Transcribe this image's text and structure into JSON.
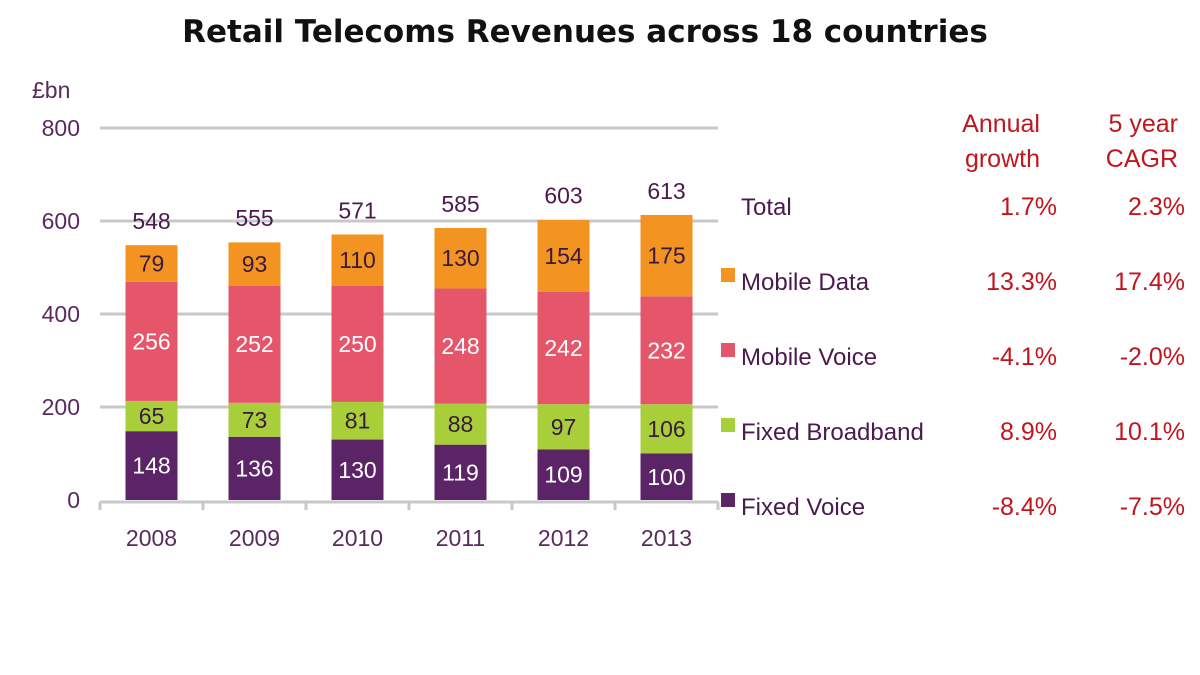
{
  "chart_data": {
    "type": "bar",
    "stacked": true,
    "title": "Retail Telecoms Revenues across 18 countries",
    "ylabel": "£bn",
    "ylim": [
      0,
      800
    ],
    "yticks": [
      "0",
      "200",
      "400",
      "600",
      "800"
    ],
    "grid": true,
    "legend_position": "right",
    "categories": [
      "2008",
      "2009",
      "2010",
      "2011",
      "2012",
      "2013"
    ],
    "totals": [
      548,
      555,
      571,
      585,
      603,
      613
    ],
    "series": [
      {
        "name": "Fixed Voice",
        "color": "#5b2466",
        "label_color": "#ffffff",
        "values": [
          148,
          136,
          130,
          119,
          109,
          100
        ]
      },
      {
        "name": "Fixed Broadband",
        "color": "#a8cf3a",
        "label_color": "#3a1a3e",
        "values": [
          65,
          73,
          81,
          88,
          97,
          106
        ]
      },
      {
        "name": "Mobile Voice",
        "color": "#e5566b",
        "label_color": "#ffffff",
        "values": [
          256,
          252,
          250,
          248,
          242,
          232
        ]
      },
      {
        "name": "Mobile Data",
        "color": "#f39322",
        "label_color": "#3a1a3e",
        "values": [
          79,
          93,
          110,
          130,
          154,
          175
        ]
      }
    ],
    "growth_table": {
      "headers": [
        [
          "Annual",
          "growth"
        ],
        [
          "5 year",
          "CAGR"
        ]
      ],
      "rows": [
        {
          "name": "Total",
          "annual": "1.7%",
          "cagr": "2.3%"
        },
        {
          "name": "Mobile Data",
          "annual": "13.3%",
          "cagr": "17.4%"
        },
        {
          "name": "Mobile Voice",
          "annual": "-4.1%",
          "cagr": "-2.0%"
        },
        {
          "name": "Fixed Broadband",
          "annual": "8.9%",
          "cagr": "10.1%"
        },
        {
          "name": "Fixed Voice",
          "annual": "-8.4%",
          "cagr": "-7.5%"
        }
      ]
    }
  }
}
